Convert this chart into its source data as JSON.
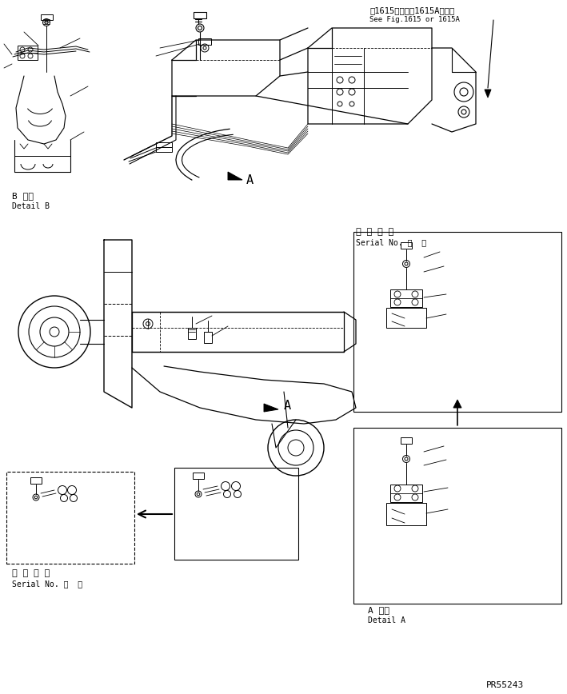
{
  "bg_color": "#ffffff",
  "fig_width": 7.09,
  "fig_height": 8.68,
  "dpi": 100,
  "top_right_line1": "第1615図または1615A図参照",
  "top_right_line2": "See Fig.1615 or 1615A",
  "bottom_right": "PR55243",
  "detail_b1": "B 詳細",
  "detail_b2": "Detail B",
  "detail_a1": "A 詳細",
  "detail_a2": "Detail A",
  "serial_jp": "適 用 号 機",
  "serial_en": "Serial No.",
  "serial_dot": "・  ～",
  "label_A": "A",
  "lw": 0.7,
  "lw2": 1.0,
  "fs_small": 6.5,
  "fs_med": 7.5,
  "fs_large": 9
}
